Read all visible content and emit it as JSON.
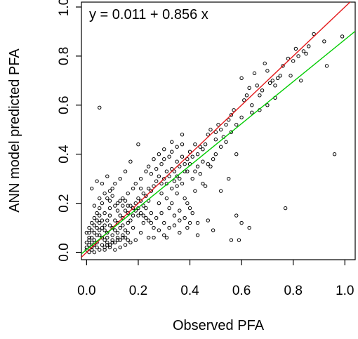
{
  "chart_data": {
    "type": "scatter",
    "title": "",
    "xlabel": "Observed PFA",
    "ylabel": "ANN model predicted PFA",
    "xlim": [
      -0.02,
      1.04
    ],
    "ylim": [
      -0.03,
      1.02
    ],
    "x_ticks": [
      "0.0",
      "0.2",
      "0.4",
      "0.6",
      "0.8",
      "1.0"
    ],
    "y_ticks": [
      "0.0",
      "0.2",
      "0.4",
      "0.6",
      "0.8",
      "1.0"
    ],
    "annotation": "y = 0.011 + 0.856 x",
    "grid": false,
    "point_style": {
      "shape": "open-circle",
      "color": "#000000"
    },
    "lines": [
      {
        "kind": "identity",
        "intercept": 0.0,
        "slope": 1.0,
        "color": "#e41a1c"
      },
      {
        "kind": "regression",
        "intercept": 0.011,
        "slope": 0.856,
        "color": "#00cc00"
      }
    ],
    "series": [
      {
        "points": [
          [
            0.05,
            0.59
          ],
          [
            0.96,
            0.4
          ],
          [
            0.99,
            0.88
          ],
          [
            0.92,
            0.86
          ],
          [
            0.88,
            0.89
          ],
          [
            0.84,
            0.82
          ],
          [
            0.82,
            0.8
          ],
          [
            0.8,
            0.78
          ],
          [
            0.81,
            0.83
          ],
          [
            0.78,
            0.79
          ],
          [
            0.83,
            0.7
          ],
          [
            0.93,
            0.76
          ],
          [
            0.75,
            0.72
          ],
          [
            0.72,
            0.7
          ],
          [
            0.7,
            0.74
          ],
          [
            0.69,
            0.77
          ],
          [
            0.68,
            0.66
          ],
          [
            0.73,
            0.63
          ],
          [
            0.77,
            0.18
          ],
          [
            0.6,
            0.12
          ],
          [
            0.63,
            0.1
          ],
          [
            0.58,
            0.15
          ],
          [
            0.59,
            0.05
          ],
          [
            0.56,
            0.05
          ],
          [
            0.6,
            0.71
          ],
          [
            0.63,
            0.67
          ],
          [
            0.65,
            0.73
          ],
          [
            0.55,
            0.54
          ],
          [
            0.56,
            0.56
          ],
          [
            0.54,
            0.52
          ],
          [
            0.52,
            0.5
          ],
          [
            0.53,
            0.47
          ],
          [
            0.51,
            0.52
          ],
          [
            0.5,
            0.49
          ],
          [
            0.5,
            0.46
          ],
          [
            0.48,
            0.5
          ],
          [
            0.47,
            0.48
          ],
          [
            0.46,
            0.44
          ],
          [
            0.45,
            0.42
          ],
          [
            0.44,
            0.43
          ],
          [
            0.43,
            0.4
          ],
          [
            0.42,
            0.44
          ],
          [
            0.41,
            0.39
          ],
          [
            0.4,
            0.41
          ],
          [
            0.39,
            0.38
          ],
          [
            0.38,
            0.36
          ],
          [
            0.37,
            0.39
          ],
          [
            0.36,
            0.35
          ],
          [
            0.35,
            0.37
          ],
          [
            0.34,
            0.33
          ],
          [
            0.33,
            0.34
          ],
          [
            0.32,
            0.31
          ],
          [
            0.31,
            0.33
          ],
          [
            0.3,
            0.3
          ],
          [
            0.29,
            0.28
          ],
          [
            0.28,
            0.31
          ],
          [
            0.27,
            0.29
          ],
          [
            0.26,
            0.27
          ],
          [
            0.25,
            0.25
          ],
          [
            0.24,
            0.26
          ],
          [
            0.23,
            0.23
          ],
          [
            0.22,
            0.24
          ],
          [
            0.21,
            0.21
          ],
          [
            0.2,
            0.22
          ],
          [
            0.19,
            0.2
          ],
          [
            0.18,
            0.18
          ],
          [
            0.17,
            0.19
          ],
          [
            0.16,
            0.16
          ],
          [
            0.15,
            0.17
          ],
          [
            0.14,
            0.14
          ],
          [
            0.13,
            0.15
          ],
          [
            0.12,
            0.12
          ],
          [
            0.11,
            0.13
          ],
          [
            0.1,
            0.1
          ],
          [
            0.09,
            0.11
          ],
          [
            0.08,
            0.08
          ],
          [
            0.07,
            0.09
          ],
          [
            0.06,
            0.06
          ],
          [
            0.05,
            0.07
          ],
          [
            0.04,
            0.04
          ],
          [
            0.03,
            0.05
          ],
          [
            0.02,
            0.02
          ],
          [
            0.01,
            0.03
          ],
          [
            0.0,
            0.01
          ],
          [
            0.58,
            0.4
          ],
          [
            0.55,
            0.3
          ],
          [
            0.52,
            0.25
          ],
          [
            0.48,
            0.35
          ],
          [
            0.45,
            0.28
          ],
          [
            0.43,
            0.12
          ],
          [
            0.4,
            0.18
          ],
          [
            0.38,
            0.22
          ],
          [
            0.36,
            0.08
          ],
          [
            0.34,
            0.15
          ],
          [
            0.32,
            0.18
          ],
          [
            0.3,
            0.12
          ],
          [
            0.28,
            0.2
          ],
          [
            0.26,
            0.1
          ],
          [
            0.25,
            0.16
          ],
          [
            0.24,
            0.06
          ],
          [
            0.22,
            0.12
          ],
          [
            0.21,
            0.08
          ],
          [
            0.2,
            0.15
          ],
          [
            0.19,
            0.05
          ],
          [
            0.18,
            0.1
          ],
          [
            0.17,
            0.04
          ],
          [
            0.16,
            0.08
          ],
          [
            0.15,
            0.03
          ],
          [
            0.14,
            0.06
          ],
          [
            0.13,
            0.02
          ],
          [
            0.12,
            0.05
          ],
          [
            0.11,
            0.01
          ],
          [
            0.1,
            0.04
          ],
          [
            0.09,
            0.02
          ],
          [
            0.08,
            0.03
          ],
          [
            0.07,
            0.01
          ],
          [
            0.2,
            0.44
          ],
          [
            0.17,
            0.37
          ],
          [
            0.15,
            0.33
          ],
          [
            0.13,
            0.3
          ],
          [
            0.11,
            0.28
          ],
          [
            0.1,
            0.26
          ],
          [
            0.09,
            0.25
          ],
          [
            0.08,
            0.22
          ],
          [
            0.07,
            0.24
          ],
          [
            0.06,
            0.2
          ],
          [
            0.05,
            0.18
          ],
          [
            0.04,
            0.16
          ],
          [
            0.03,
            0.14
          ],
          [
            0.02,
            0.12
          ],
          [
            0.01,
            0.1
          ],
          [
            0.0,
            0.08
          ],
          [
            0.37,
            0.48
          ],
          [
            0.33,
            0.45
          ],
          [
            0.3,
            0.42
          ],
          [
            0.28,
            0.4
          ],
          [
            0.26,
            0.38
          ],
          [
            0.24,
            0.35
          ],
          [
            0.23,
            0.33
          ],
          [
            0.21,
            0.3
          ],
          [
            0.66,
            0.68
          ],
          [
            0.62,
            0.64
          ],
          [
            0.64,
            0.6
          ],
          [
            0.57,
            0.58
          ],
          [
            0.61,
            0.62
          ],
          [
            0.67,
            0.64
          ],
          [
            0.71,
            0.69
          ],
          [
            0.74,
            0.71
          ],
          [
            0.46,
            0.27
          ],
          [
            0.42,
            0.25
          ],
          [
            0.39,
            0.2
          ],
          [
            0.35,
            0.27
          ],
          [
            0.31,
            0.22
          ],
          [
            0.29,
            0.16
          ],
          [
            0.27,
            0.14
          ],
          [
            0.23,
            0.18
          ],
          [
            0.44,
            0.32
          ],
          [
            0.41,
            0.3
          ],
          [
            0.39,
            0.33
          ],
          [
            0.37,
            0.28
          ],
          [
            0.35,
            0.31
          ],
          [
            0.33,
            0.26
          ],
          [
            0.31,
            0.28
          ],
          [
            0.29,
            0.24
          ],
          [
            0.04,
            0.29
          ],
          [
            0.02,
            0.26
          ],
          [
            0.06,
            0.28
          ],
          [
            0.08,
            0.31
          ],
          [
            0.05,
            0.22
          ],
          [
            0.03,
            0.19
          ],
          [
            0.07,
            0.16
          ],
          [
            0.09,
            0.18
          ],
          [
            0.12,
            0.2
          ],
          [
            0.14,
            0.22
          ],
          [
            0.16,
            0.24
          ],
          [
            0.18,
            0.26
          ],
          [
            0.19,
            0.28
          ],
          [
            0.21,
            0.26
          ],
          [
            0.22,
            0.19
          ],
          [
            0.24,
            0.21
          ],
          [
            0.02,
            0.06
          ],
          [
            0.03,
            0.08
          ],
          [
            0.04,
            0.1
          ],
          [
            0.05,
            0.12
          ],
          [
            0.06,
            0.13
          ],
          [
            0.07,
            0.11
          ],
          [
            0.08,
            0.13
          ],
          [
            0.09,
            0.15
          ],
          [
            0.01,
            0.05
          ],
          [
            0.02,
            0.04
          ],
          [
            0.03,
            0.03
          ],
          [
            0.04,
            0.07
          ],
          [
            0.05,
            0.09
          ],
          [
            0.06,
            0.1
          ],
          [
            0.07,
            0.05
          ],
          [
            0.08,
            0.06
          ],
          [
            0.1,
            0.07
          ],
          [
            0.11,
            0.09
          ],
          [
            0.12,
            0.08
          ],
          [
            0.13,
            0.1
          ],
          [
            0.14,
            0.11
          ],
          [
            0.15,
            0.09
          ],
          [
            0.16,
            0.12
          ],
          [
            0.17,
            0.13
          ],
          [
            0.01,
            0.0
          ],
          [
            0.02,
            0.01
          ],
          [
            0.03,
            0.0
          ],
          [
            0.04,
            0.02
          ],
          [
            0.05,
            0.01
          ],
          [
            0.06,
            0.03
          ],
          [
            0.07,
            0.02
          ],
          [
            0.08,
            0.04
          ],
          [
            0.09,
            0.03
          ],
          [
            0.1,
            0.05
          ],
          [
            0.11,
            0.04
          ],
          [
            0.12,
            0.06
          ],
          [
            0.13,
            0.05
          ],
          [
            0.14,
            0.07
          ],
          [
            0.15,
            0.06
          ],
          [
            0.16,
            0.05
          ],
          [
            0.0,
            0.02
          ],
          [
            0.0,
            0.04
          ],
          [
            0.01,
            0.06
          ],
          [
            0.01,
            0.08
          ],
          [
            0.02,
            0.09
          ],
          [
            0.03,
            0.11
          ],
          [
            0.04,
            0.13
          ],
          [
            0.05,
            0.15
          ],
          [
            0.26,
            0.06
          ],
          [
            0.28,
            0.09
          ],
          [
            0.3,
            0.07
          ],
          [
            0.32,
            0.1
          ],
          [
            0.34,
            0.11
          ],
          [
            0.36,
            0.13
          ],
          [
            0.38,
            0.14
          ],
          [
            0.4,
            0.12
          ],
          [
            0.47,
            0.13
          ],
          [
            0.49,
            0.09
          ],
          [
            0.43,
            0.07
          ],
          [
            0.41,
            0.16
          ],
          [
            0.39,
            0.1
          ],
          [
            0.36,
            0.17
          ],
          [
            0.33,
            0.2
          ],
          [
            0.31,
            0.06
          ],
          [
            0.86,
            0.84
          ],
          [
            0.85,
            0.81
          ],
          [
            0.79,
            0.72
          ],
          [
            0.76,
            0.76
          ],
          [
            0.73,
            0.68
          ],
          [
            0.7,
            0.6
          ],
          [
            0.67,
            0.58
          ],
          [
            0.64,
            0.57
          ],
          [
            0.6,
            0.55
          ],
          [
            0.58,
            0.52
          ],
          [
            0.56,
            0.49
          ],
          [
            0.54,
            0.45
          ],
          [
            0.52,
            0.43
          ],
          [
            0.5,
            0.4
          ],
          [
            0.49,
            0.38
          ],
          [
            0.47,
            0.36
          ],
          [
            0.45,
            0.37
          ],
          [
            0.43,
            0.35
          ],
          [
            0.42,
            0.33
          ],
          [
            0.4,
            0.36
          ],
          [
            0.38,
            0.33
          ],
          [
            0.36,
            0.3
          ],
          [
            0.35,
            0.24
          ],
          [
            0.34,
            0.29
          ],
          [
            0.25,
            0.32
          ],
          [
            0.27,
            0.34
          ],
          [
            0.29,
            0.36
          ],
          [
            0.3,
            0.38
          ],
          [
            0.32,
            0.39
          ],
          [
            0.33,
            0.41
          ],
          [
            0.35,
            0.43
          ],
          [
            0.37,
            0.44
          ],
          [
            0.09,
            0.21
          ],
          [
            0.1,
            0.23
          ],
          [
            0.11,
            0.19
          ],
          [
            0.12,
            0.17
          ],
          [
            0.13,
            0.21
          ],
          [
            0.14,
            0.19
          ],
          [
            0.15,
            0.21
          ],
          [
            0.16,
            0.19
          ],
          [
            0.18,
            0.15
          ],
          [
            0.19,
            0.17
          ],
          [
            0.2,
            0.18
          ],
          [
            0.21,
            0.16
          ],
          [
            0.22,
            0.15
          ],
          [
            0.23,
            0.14
          ],
          [
            0.24,
            0.13
          ],
          [
            0.25,
            0.12
          ]
        ]
      }
    ]
  }
}
